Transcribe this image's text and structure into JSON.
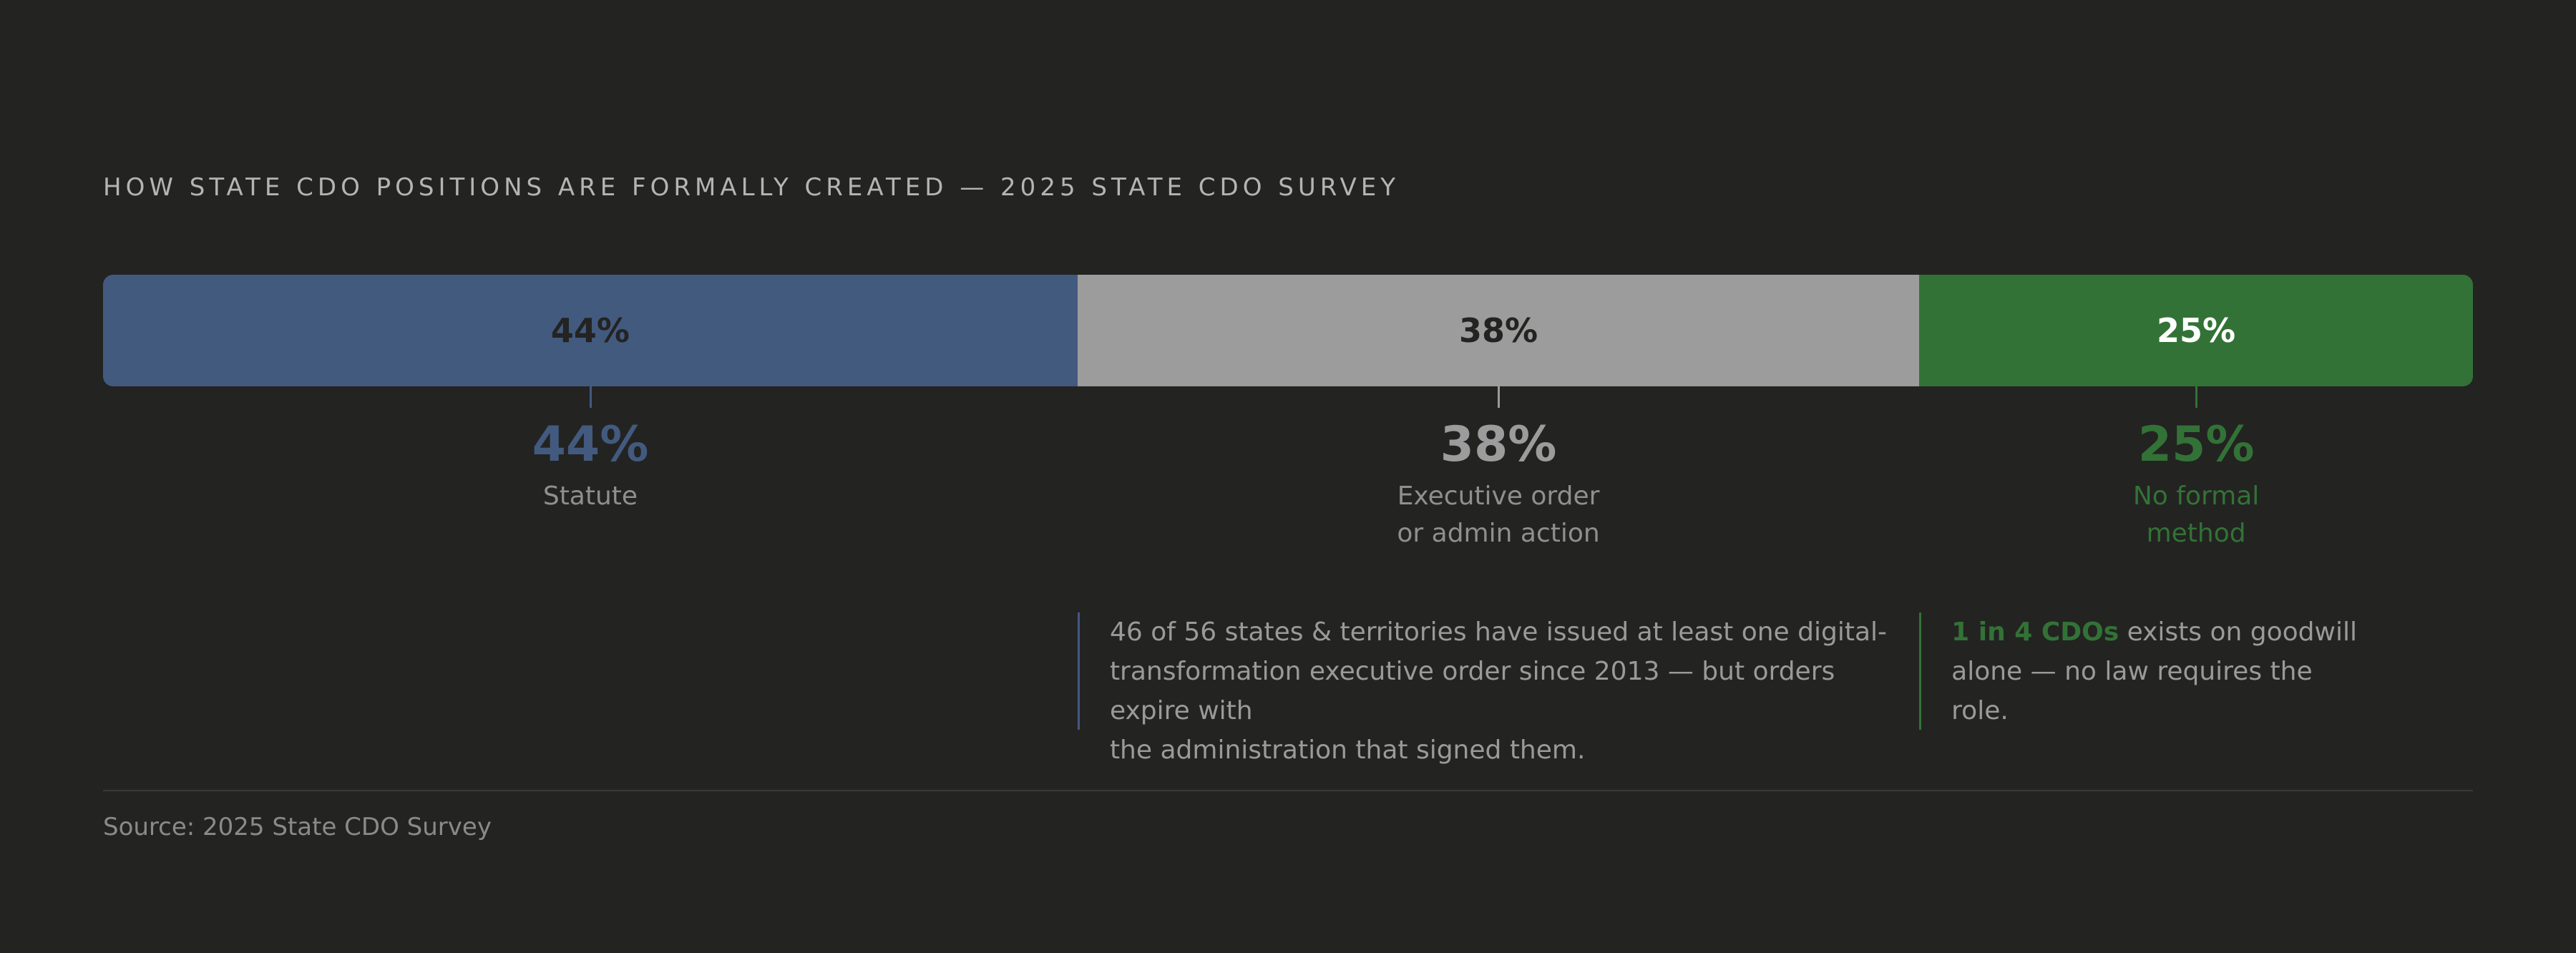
{
  "title": "HOW STATE CDO POSITIONS ARE FORMALLY CREATED — 2025 STATE CDO SURVEY",
  "chart_data": {
    "type": "bar",
    "orientation": "horizontal",
    "stacked": true,
    "categories": [
      "Statute",
      "Executive order or admin action",
      "No formal method"
    ],
    "values": [
      44,
      38,
      25
    ],
    "unit": "%",
    "bar_labels": [
      "44%",
      "38%",
      "25%"
    ],
    "callouts": [
      {
        "value": "44%",
        "label": [
          "Statute"
        ],
        "color": "#435a7f"
      },
      {
        "value": "38%",
        "label": [
          "Executive order",
          "or admin action"
        ],
        "color": "#9c9c9c"
      },
      {
        "value": "25%",
        "label": [
          "No formal",
          "method"
        ],
        "color": "#337236"
      }
    ],
    "colors": [
      "#435a7f",
      "#9c9c9c",
      "#337236"
    ],
    "bar_text_colors": [
      "#232322",
      "#232322",
      "#ffffff"
    ],
    "grid": false,
    "legend": "none"
  },
  "notes": [
    {
      "segment": 1,
      "color": "#435a7f",
      "lines": [
        "46 of 56 states & territories have issued at least one digital-",
        "transformation executive order since 2013 — but orders expire with",
        "the administration that signed them."
      ]
    },
    {
      "segment": 2,
      "color": "#337236",
      "highlight": "1 in 4 CDOs",
      "lines": [
        " exists on goodwill",
        "alone — no law requires the",
        "role."
      ]
    }
  ],
  "source": "Source: 2025 State CDO Survey"
}
